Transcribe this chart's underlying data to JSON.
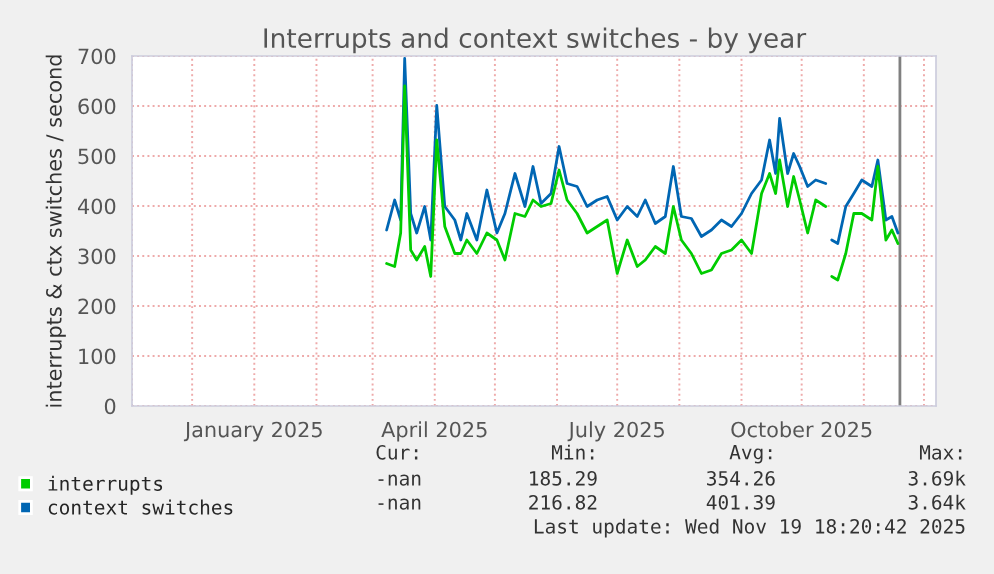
{
  "chart_data": {
    "type": "line",
    "title": "Interrupts and context switches - by year",
    "ylabel": "interrupts & ctx switches / second",
    "x": [
      "2025-03-08",
      "2025-03-12",
      "2025-03-15",
      "2025-03-17",
      "2025-03-20",
      "2025-03-23",
      "2025-03-27",
      "2025-03-30",
      "2025-04-02",
      "2025-04-06",
      "2025-04-11",
      "2025-04-14",
      "2025-04-17",
      "2025-04-22",
      "2025-04-27",
      "2025-05-02",
      "2025-05-06",
      "2025-05-11",
      "2025-05-16",
      "2025-05-20",
      "2025-05-24",
      "2025-05-29",
      "2025-06-02",
      "2025-06-06",
      "2025-06-11",
      "2025-06-16",
      "2025-06-21",
      "2025-06-26",
      "2025-07-01",
      "2025-07-06",
      "2025-07-11",
      "2025-07-15",
      "2025-07-20",
      "2025-07-25",
      "2025-07-29",
      "2025-08-02",
      "2025-08-07",
      "2025-08-12",
      "2025-08-17",
      "2025-08-22",
      "2025-08-27",
      "2025-09-01",
      "2025-09-06",
      "2025-09-11",
      "2025-09-15",
      "2025-09-18",
      "2025-09-20",
      "2025-09-24",
      "2025-09-27",
      "2025-09-30",
      "2025-10-04",
      "2025-10-08",
      "2025-10-13",
      "2025-10-14",
      "2025-10-16",
      "2025-10-19",
      "2025-10-23",
      "2025-10-27",
      "2025-10-31",
      "2025-11-05",
      "2025-11-08",
      "2025-11-12",
      "2025-11-15",
      "2025-11-18"
    ],
    "series": [
      {
        "name": "interrupts",
        "color": "#00cc00",
        "values": [
          285,
          279,
          346,
          640,
          312,
          292,
          319,
          259,
          532,
          359,
          305,
          305,
          332,
          305,
          346,
          332,
          292,
          385,
          379,
          412,
          399,
          405,
          472,
          412,
          385,
          346,
          359,
          372,
          265,
          332,
          279,
          292,
          319,
          305,
          399,
          332,
          305,
          265,
          272,
          305,
          312,
          332,
          305,
          425,
          465,
          425,
          492,
          399,
          459,
          412,
          346,
          412,
          399,
          null,
          259,
          252,
          305,
          385,
          385,
          372,
          479,
          332,
          352,
          325
        ]
      },
      {
        "name": "context switches",
        "color": "#0066b3",
        "values": [
          352,
          412,
          372,
          695,
          385,
          346,
          399,
          332,
          601,
          399,
          372,
          332,
          385,
          332,
          432,
          346,
          385,
          465,
          399,
          479,
          405,
          425,
          519,
          445,
          439,
          399,
          412,
          419,
          372,
          399,
          379,
          412,
          365,
          379,
          479,
          379,
          375,
          339,
          352,
          372,
          359,
          385,
          425,
          452,
          532,
          465,
          575,
          465,
          505,
          479,
          439,
          452,
          445,
          null,
          332,
          325,
          399,
          425,
          452,
          439,
          492,
          372,
          379,
          346
        ]
      }
    ],
    "xlim": [
      "2024-11-01",
      "2025-12-07"
    ],
    "xticks": [
      {
        "value": "2024-11-01",
        "label": null
      },
      {
        "value": "2024-12-01",
        "label": null
      },
      {
        "value": "2025-01-01",
        "label": "January 2025"
      },
      {
        "value": "2025-02-01",
        "label": null
      },
      {
        "value": "2025-03-01",
        "label": null
      },
      {
        "value": "2025-04-01",
        "label": "April 2025"
      },
      {
        "value": "2025-05-01",
        "label": null
      },
      {
        "value": "2025-06-01",
        "label": null
      },
      {
        "value": "2025-07-01",
        "label": "July 2025"
      },
      {
        "value": "2025-08-01",
        "label": null
      },
      {
        "value": "2025-09-01",
        "label": null
      },
      {
        "value": "2025-10-01",
        "label": "October 2025"
      },
      {
        "value": "2025-11-01",
        "label": null
      },
      {
        "value": "2025-12-01",
        "label": null
      }
    ],
    "ylim": [
      0,
      700
    ],
    "yticks": [
      0,
      100,
      200,
      300,
      400,
      500,
      600,
      700
    ],
    "grid": true,
    "legend": "bottom left",
    "marker": "none",
    "line_style": "solid",
    "ref_lines": [
      {
        "axis": "x",
        "value": "2025-11-19",
        "color": "#808080"
      }
    ],
    "annotations": [
      "Cur:",
      "Min:",
      "Avg:",
      "Max:",
      "-nan",
      "185.29",
      "354.26",
      "3.69k",
      "-nan",
      "216.82",
      "401.39",
      "3.64k",
      "Last update: Wed Nov 19 18:20:42 2025"
    ]
  }
}
